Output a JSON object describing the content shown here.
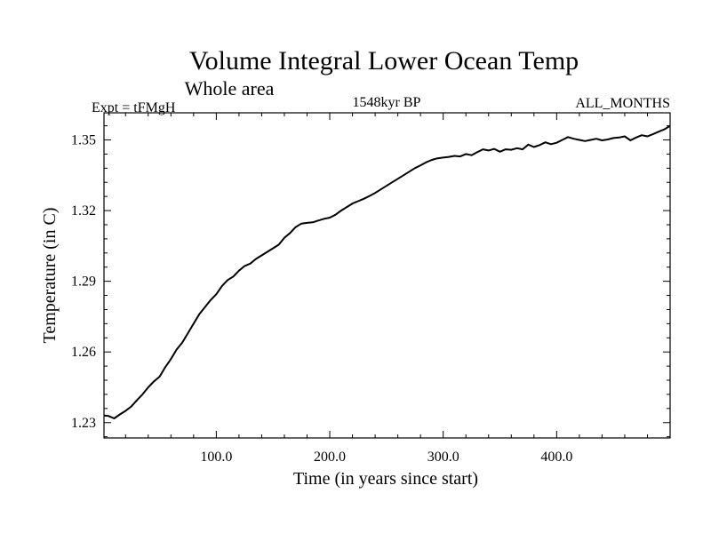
{
  "chart_data": {
    "type": "line",
    "title": "Volume Integral Lower Ocean Temp",
    "subtitle": "Whole area",
    "left_label": "Expt = tFMgH",
    "center_label": "1548kyr BP",
    "right_label": "ALL_MONTHS",
    "xlabel": "Time (in years since start)",
    "ylabel": "Temperature (in C)",
    "xlim": [
      1,
      500
    ],
    "ylim": [
      1.2235,
      1.3615
    ],
    "x_ticks": [
      100,
      200,
      300,
      400
    ],
    "x_tick_labels": [
      "100.0",
      "200.0",
      "300.0",
      "400.0"
    ],
    "y_ticks": [
      1.23,
      1.26,
      1.29,
      1.32,
      1.35
    ],
    "y_tick_labels": [
      "1.23",
      "1.26",
      "1.29",
      "1.32",
      "1.35"
    ],
    "grid": false,
    "series": [
      {
        "name": "Volume Integral Lower Ocean Temp",
        "x": [
          1,
          5,
          10,
          15,
          20,
          25,
          30,
          35,
          40,
          45,
          50,
          55,
          60,
          65,
          70,
          75,
          80,
          85,
          90,
          95,
          100,
          105,
          110,
          115,
          120,
          125,
          130,
          135,
          140,
          145,
          150,
          155,
          160,
          165,
          170,
          175,
          180,
          185,
          190,
          195,
          200,
          205,
          210,
          215,
          220,
          225,
          230,
          235,
          240,
          245,
          250,
          255,
          260,
          265,
          270,
          275,
          280,
          285,
          290,
          295,
          300,
          305,
          310,
          315,
          320,
          325,
          330,
          335,
          340,
          345,
          350,
          355,
          360,
          365,
          370,
          375,
          380,
          385,
          390,
          395,
          400,
          405,
          410,
          415,
          420,
          425,
          430,
          435,
          440,
          445,
          450,
          455,
          460,
          465,
          470,
          475,
          480,
          485,
          490,
          495,
          500
        ],
        "values": [
          1.233,
          1.2328,
          1.2318,
          1.2335,
          1.235,
          1.2368,
          1.2395,
          1.242,
          1.245,
          1.2475,
          1.2495,
          1.2535,
          1.257,
          1.261,
          1.264,
          1.268,
          1.272,
          1.276,
          1.279,
          1.282,
          1.2845,
          1.288,
          1.2905,
          1.292,
          1.2945,
          1.2965,
          1.2975,
          1.2995,
          1.301,
          1.3025,
          1.304,
          1.3055,
          1.3085,
          1.3105,
          1.313,
          1.3145,
          1.3148,
          1.315,
          1.3158,
          1.3165,
          1.317,
          1.3182,
          1.32,
          1.3215,
          1.323,
          1.324,
          1.325,
          1.3262,
          1.3275,
          1.329,
          1.3305,
          1.332,
          1.3335,
          1.335,
          1.3365,
          1.338,
          1.3392,
          1.3405,
          1.3415,
          1.3422,
          1.3425,
          1.3428,
          1.3432,
          1.343,
          1.344,
          1.3435,
          1.3448,
          1.346,
          1.3455,
          1.3462,
          1.345,
          1.346,
          1.3458,
          1.3465,
          1.346,
          1.348,
          1.347,
          1.3478,
          1.349,
          1.3482,
          1.3488,
          1.35,
          1.3512,
          1.3505,
          1.35,
          1.3495,
          1.35,
          1.3505,
          1.3498,
          1.3502,
          1.3508,
          1.351,
          1.3515,
          1.3498,
          1.351,
          1.352,
          1.3515,
          1.3525,
          1.3535,
          1.3545,
          1.356
        ]
      }
    ]
  }
}
